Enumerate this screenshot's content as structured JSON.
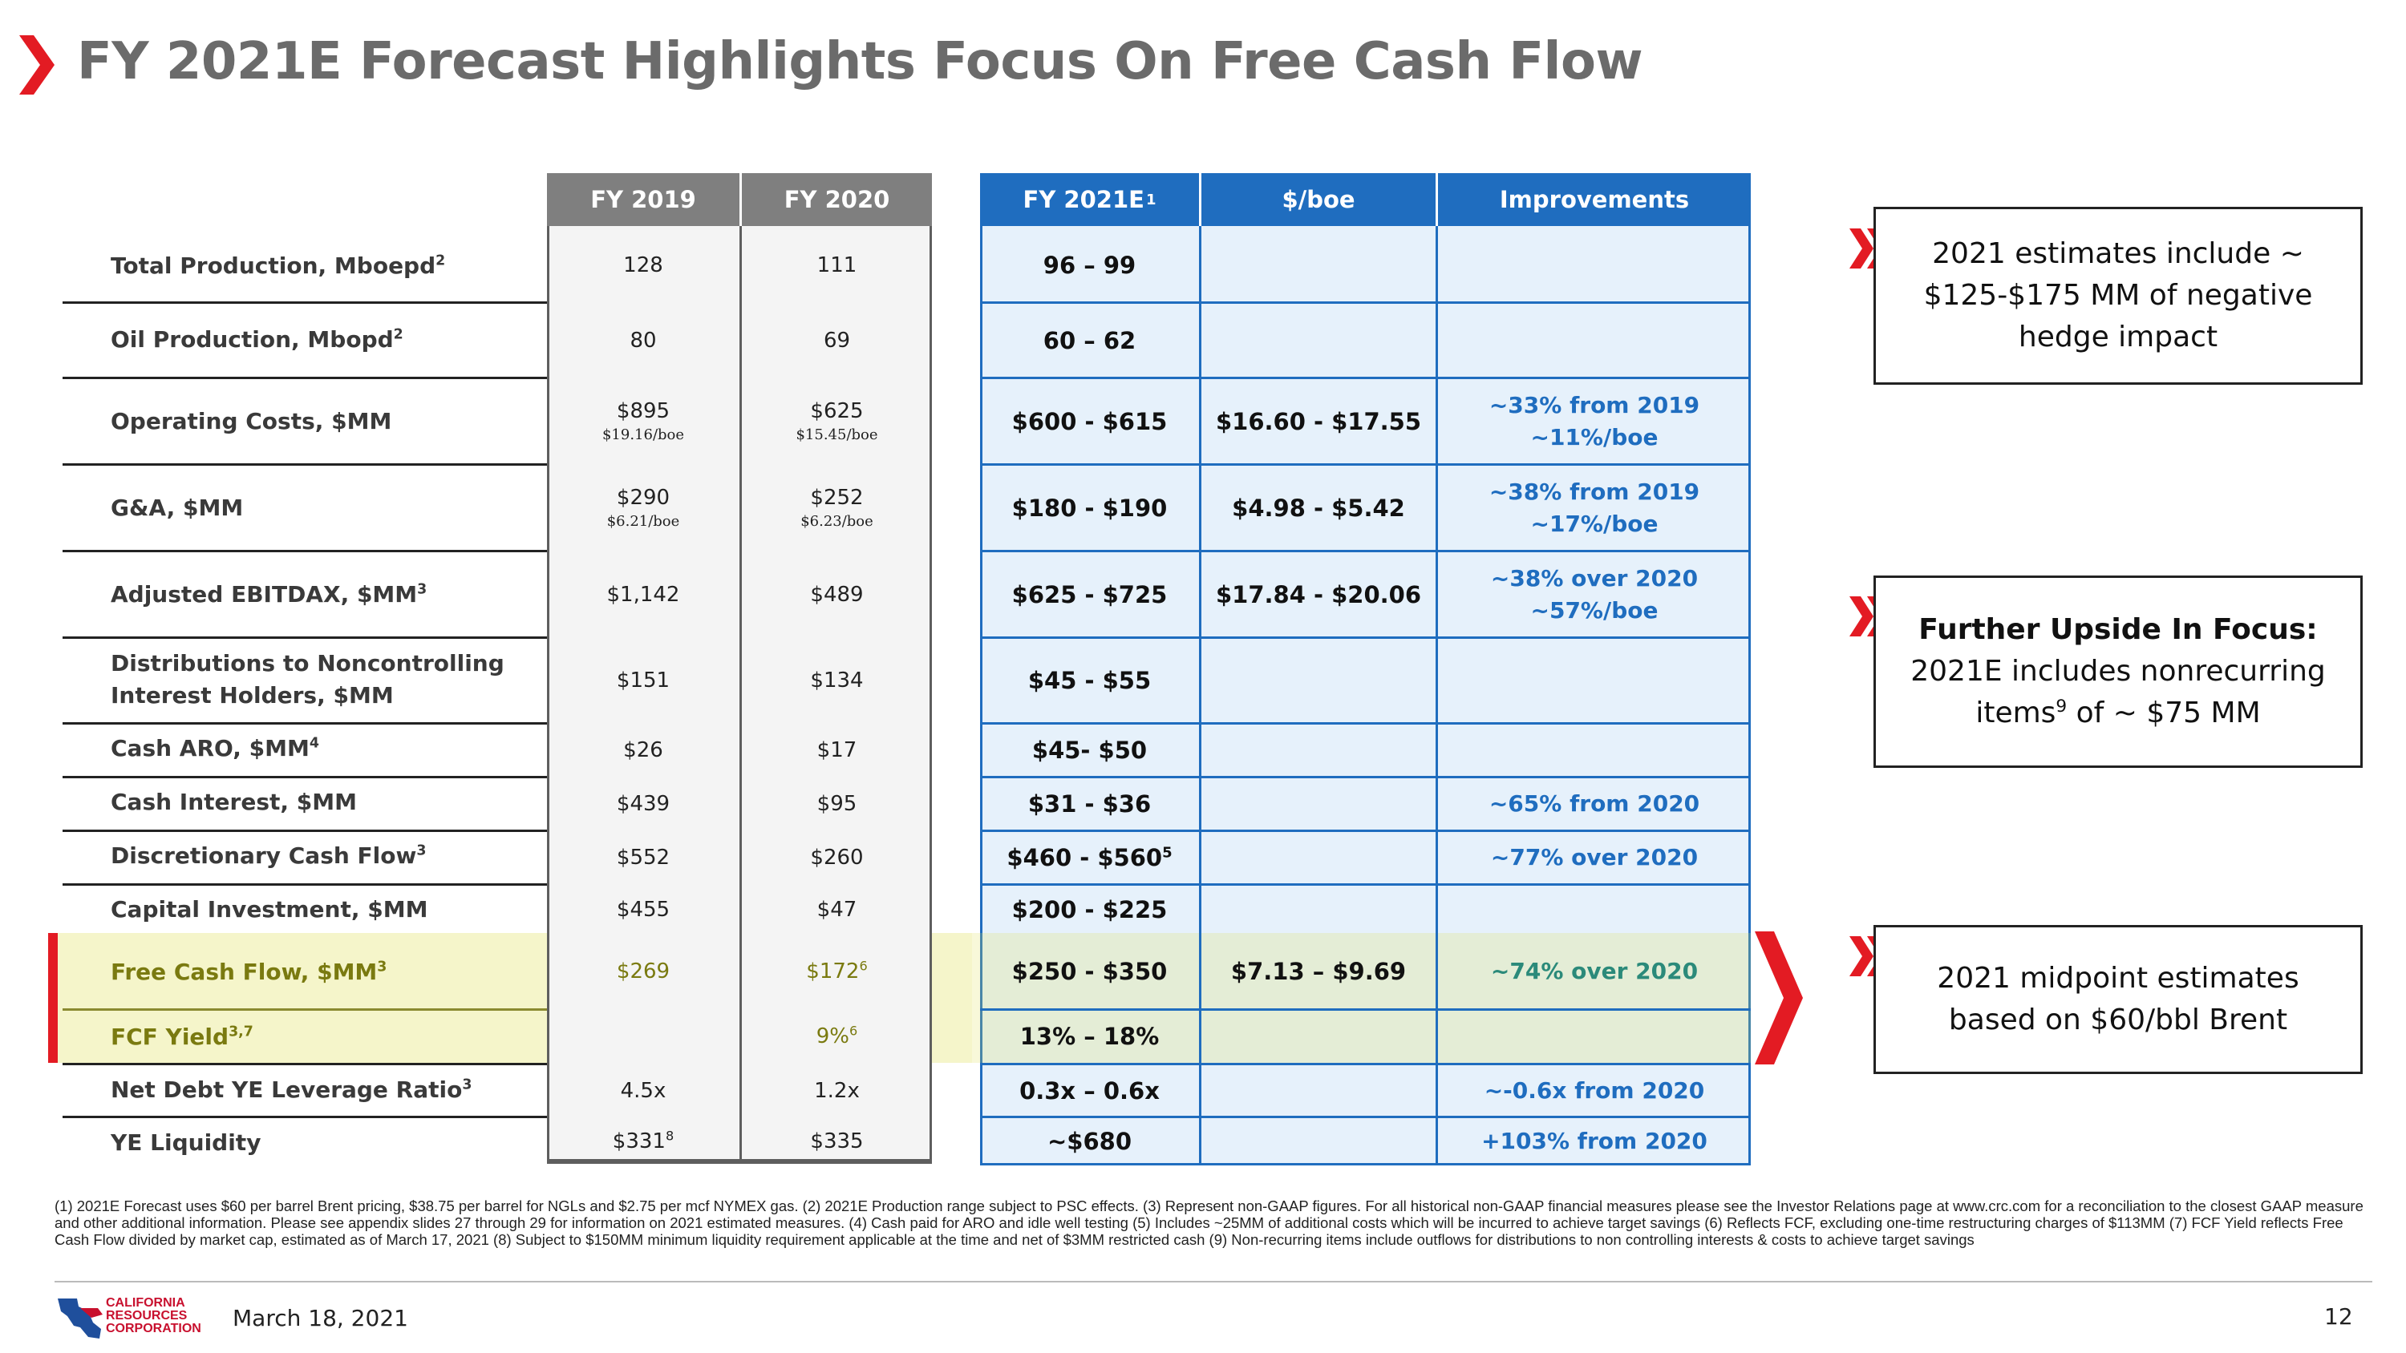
{
  "title": "FY 2021E Forecast Highlights Focus On Free Cash Flow",
  "colors": {
    "accent_red": "#e31b23",
    "estimate_blue": "#1f6dbf",
    "title_gray": "#6b6b6b",
    "highlight_yellow": "#dede50"
  },
  "icons": {
    "title": "chevron-right-icon",
    "callout": "double-chevron-icon",
    "highlight": "chevron-right-icon"
  },
  "headers": {
    "fy2019": "FY 2019",
    "fy2020": "FY 2020",
    "fy2021e": "FY 2021E",
    "fy2021e_sup": "1",
    "per_boe": "$/boe",
    "improvements": "Improvements"
  },
  "rows": [
    {
      "label": "Total Production, Mboepd",
      "sup": "2",
      "fy2019": "128",
      "fy2020": "111",
      "fy2021e": "96 – 99"
    },
    {
      "label": "Oil Production,  Mbopd",
      "sup": "2",
      "fy2019": "80",
      "fy2020": "69",
      "fy2021e": "60 – 62"
    },
    {
      "label": "Operating Costs, $MM",
      "fy2019": "$895",
      "fy2019_sub": "$19.16/boe",
      "fy2020": "$625",
      "fy2020_sub": "$15.45/boe",
      "fy2021e": "$600 - $615",
      "per_boe": "$16.60 - $17.55",
      "imp1": "~33% from 2019",
      "imp2": "~11%/boe"
    },
    {
      "label": "G&A, $MM",
      "fy2019": "$290",
      "fy2019_sub": "$6.21/boe",
      "fy2020": "$252",
      "fy2020_sub": "$6.23/boe",
      "fy2021e": "$180 - $190",
      "per_boe": "$4.98 - $5.42",
      "imp1": "~38% from 2019",
      "imp2": "~17%/boe"
    },
    {
      "label": "Adjusted EBITDAX, $MM",
      "sup": "3",
      "fy2019": "$1,142",
      "fy2020": "$489",
      "fy2021e": "$625 - $725",
      "per_boe": "$17.84 - $20.06",
      "imp1": "~38% over 2020",
      "imp2": "~57%/boe"
    },
    {
      "label": "Distributions to Noncontrolling",
      "label2": "Interest Holders, $MM",
      "fy2019": "$151",
      "fy2020": "$134",
      "fy2021e": "$45 - $55"
    },
    {
      "label": "Cash ARO, $MM",
      "sup": "4",
      "fy2019": "$26",
      "fy2020": "$17",
      "fy2021e": "$45- $50"
    },
    {
      "label": "Cash Interest, $MM",
      "fy2019": "$439",
      "fy2020": "$95",
      "fy2021e": "$31 - $36",
      "imp1": "~65% from 2020"
    },
    {
      "label": "Discretionary Cash Flow",
      "sup": "3",
      "fy2019": "$552",
      "fy2020": "$260",
      "fy2021e": "$460 - $560",
      "fy2021e_sup": "5",
      "imp1": "~77% over 2020"
    },
    {
      "label": "Capital Investment, $MM",
      "fy2019": "$455",
      "fy2020": "$47",
      "fy2021e": "$200 - $225"
    },
    {
      "label": "Free Cash Flow, $MM",
      "sup": "3",
      "fy2019": "$269",
      "fy2020": "$172",
      "fy2020_sup": "6",
      "fy2021e": "$250 - $350",
      "per_boe": "$7.13 – $9.69",
      "imp1": "~74% over 2020"
    },
    {
      "label": "FCF Yield",
      "sup": "3,7",
      "fy2019": "",
      "fy2020": "9%",
      "fy2020_sup": "6",
      "fy2021e": "13% – 18%"
    },
    {
      "label": "Net Debt YE Leverage Ratio",
      "sup": "3",
      "fy2019": "4.5x",
      "fy2020": "1.2x",
      "fy2021e": "0.3x – 0.6x",
      "imp1": "~-0.6x from 2020"
    },
    {
      "label": "YE Liquidity",
      "fy2019": "$331",
      "fy2019_sup": "8",
      "fy2020": "$335",
      "fy2021e": "~$680",
      "imp1": "+103%  from 2020"
    }
  ],
  "callouts": {
    "hedge": {
      "l1": "2021 estimates include ~",
      "l2": "$125-$175 MM of negative",
      "l3": "hedge impact"
    },
    "upside": {
      "l1": "Further Upside In Focus:",
      "l2": "2021E includes nonrecurring",
      "l3a": "items",
      "l3sup": "9",
      "l3b": " of ~ $75 MM"
    },
    "brent": {
      "l1": "2021 midpoint estimates",
      "l2": "based on $60/bbl Brent"
    }
  },
  "footnotes": "(1) 2021E Forecast uses $60 per barrel Brent pricing, $38.75 per barrel for NGLs and $2.75 per mcf NYMEX gas. (2) 2021E Production range subject to PSC effects. (3) Represent non-GAAP figures. For all historical non-GAAP financial measures please see the Investor Relations page at www.crc.com for a reconciliation to the closest GAAP measure and other additional information. Please see appendix slides 27 through 29 for information on 2021 estimated measures. (4) Cash paid for ARO and idle well testing (5) Includes ~25MM of additional costs which will be incurred to achieve target savings (6) Reflects FCF, excluding one-time restructuring charges of $113MM (7) FCF Yield reflects Free Cash Flow divided by market cap, estimated as of March 17, 2021 (8) Subject to $150MM minimum liquidity requirement applicable at the time and net of $3MM restricted cash (9) Non-recurring items include outflows for distributions to non controlling interests & costs to achieve target savings",
  "footer": {
    "logo_l1": "CALIFORNIA",
    "logo_l2": "RESOURCES",
    "logo_l3": "CORPORATION",
    "date": "March 18, 2021",
    "page": "12"
  }
}
